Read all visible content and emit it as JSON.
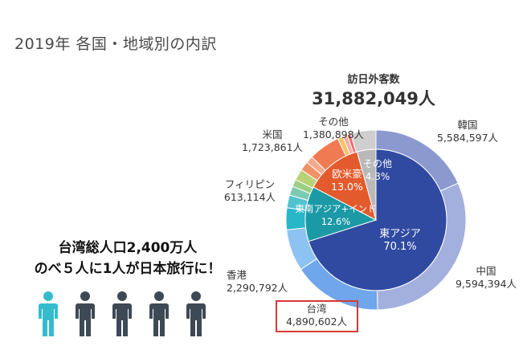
{
  "title": "2019年 各国・地域別の内訳",
  "total": {
    "label": "訪日外客数",
    "value": "31,882,049人"
  },
  "promo": {
    "line1": "台湾総人口2,400万人",
    "line2": "のべ５人に1人が日本旅行に！"
  },
  "chart_data": {
    "type": "pie",
    "inner": [
      {
        "name": "東アジア",
        "pct_label": "70.1%",
        "value": 70.1,
        "color": "#2f4aa0"
      },
      {
        "name": "東南アジア+インド",
        "pct_label": "12.6%",
        "value": 12.6,
        "color": "#1b9aa6"
      },
      {
        "name": "欧米豪",
        "pct_label": "13.0%",
        "value": 13.0,
        "color": "#e35a2c"
      },
      {
        "name": "その他",
        "pct_label": "4.3%",
        "value": 4.3,
        "color": "#b9b9b9"
      }
    ],
    "outer": [
      {
        "name": "韓国",
        "value_label": "5,584,597人",
        "value": 5584597,
        "color": "#8b99cf"
      },
      {
        "name": "中国",
        "value_label": "9,594,394人",
        "value": 9594394,
        "color": "#a3b0dd"
      },
      {
        "name": "台湾",
        "value_label": "4,890,602人",
        "value": 4890602,
        "color": "#6fa6ec"
      },
      {
        "name": "香港",
        "value_label": "2,290,792人",
        "value": 2290792,
        "color": "#8cc3f2"
      },
      {
        "name": "",
        "value": 1200000,
        "color": "#27b7c8"
      },
      {
        "name": "",
        "value": 700000,
        "color": "#52c2cf"
      },
      {
        "name": "",
        "value": 500000,
        "color": "#7ccbb0"
      },
      {
        "name": "",
        "value": 400000,
        "color": "#9ccf85"
      },
      {
        "name": "フィリピン",
        "value_label": "613,114人",
        "value": 613114,
        "color": "#b7d37a"
      },
      {
        "name": "",
        "value": 500000,
        "color": "#f29166"
      },
      {
        "name": "",
        "value": 400000,
        "color": "#f6a98a"
      },
      {
        "name": "米国",
        "value_label": "1,723,861人",
        "value": 1723861,
        "color": "#f07a52"
      },
      {
        "name": "",
        "value": 300000,
        "color": "#f7c36b"
      },
      {
        "name": "",
        "value": 250000,
        "color": "#f5b1a0"
      },
      {
        "name": "",
        "value": 200000,
        "color": "#ee6f6f"
      },
      {
        "name": "その他",
        "value_label": "1,380,898人",
        "value": 1380898,
        "color": "#cfcfcf"
      }
    ]
  },
  "people": {
    "count": 5,
    "highlight_color": "#34bccd",
    "base_color": "#3d4a55"
  }
}
